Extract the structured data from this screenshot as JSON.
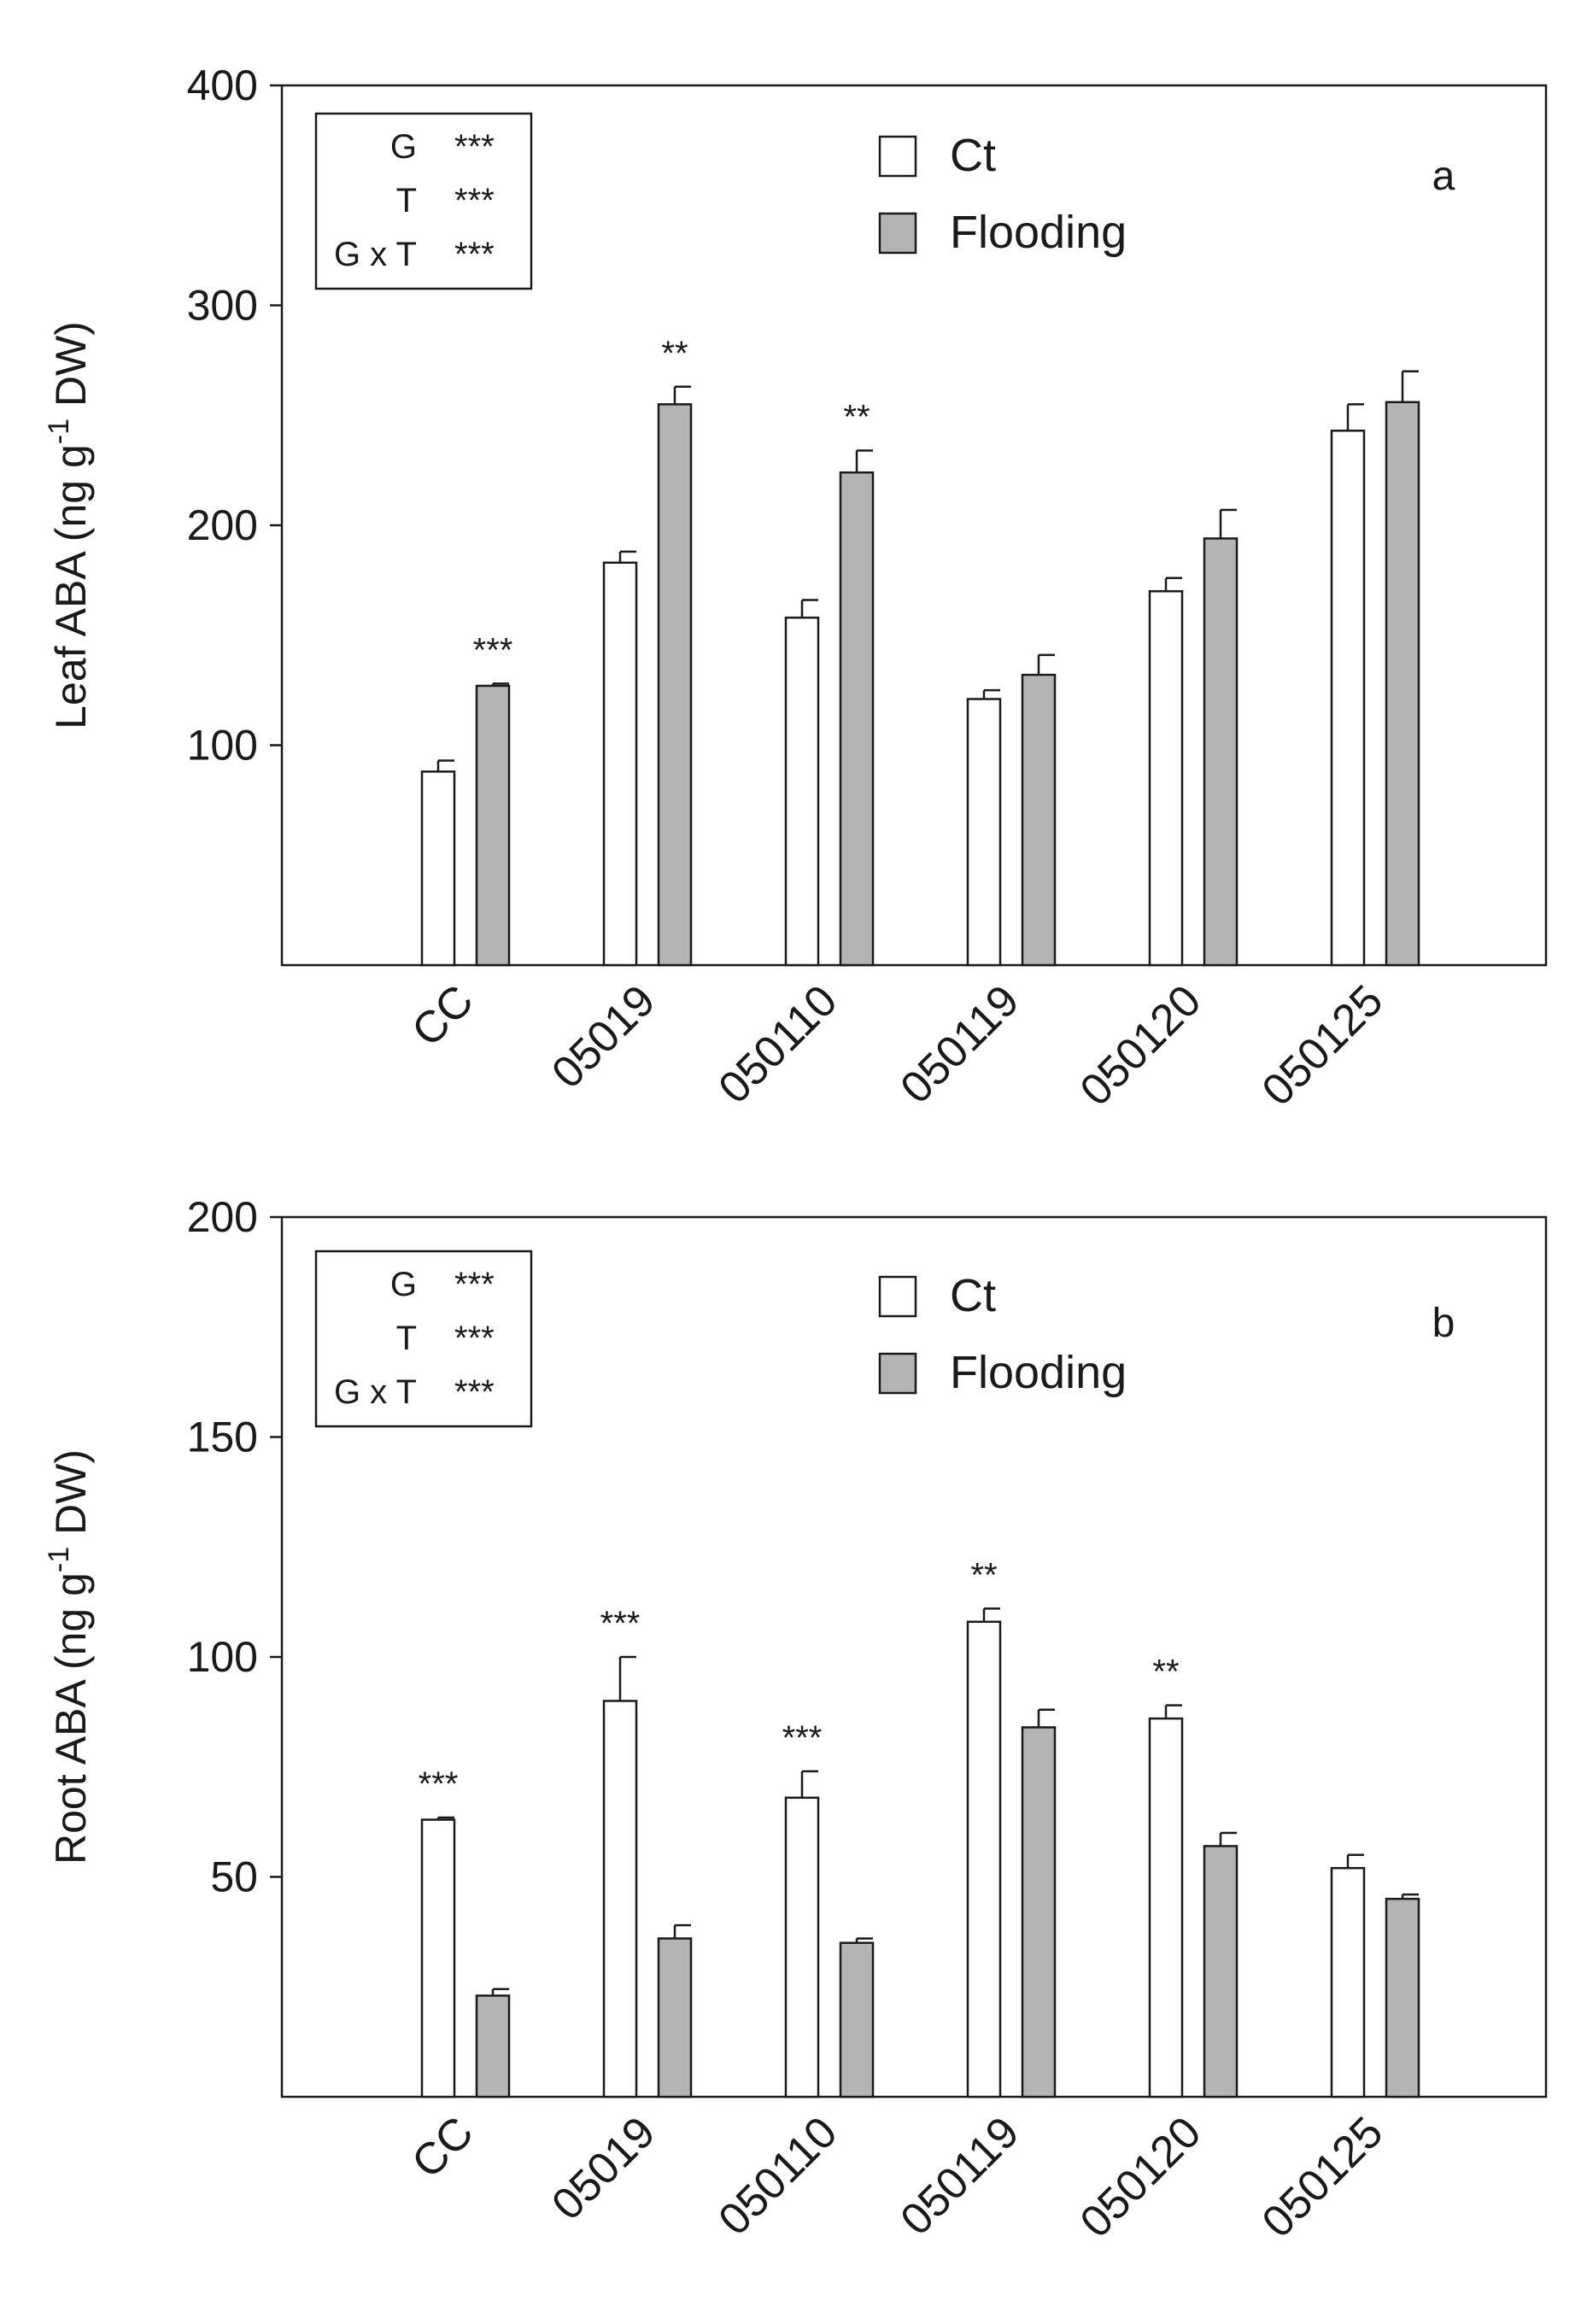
{
  "colors": {
    "ct_fill": "#ffffff",
    "flooding_fill": "#b4b4b4",
    "stroke": "#1a1a1a"
  },
  "chart_data": [
    {
      "type": "bar",
      "panel": "a",
      "ylabel": "Leaf ABA (ng g-1 DW)",
      "ylabel_parts": [
        "Leaf ABA (ng g",
        "-1",
        " DW)"
      ],
      "ylim": [
        0,
        400
      ],
      "yticks": [
        100,
        200,
        300,
        400
      ],
      "categories": [
        "CC",
        "05019",
        "050110",
        "050119",
        "050120",
        "050125"
      ],
      "series": [
        {
          "name": "Ct",
          "values": [
            88,
            183,
            158,
            121,
            170,
            243
          ],
          "errors": [
            5,
            5,
            8,
            4,
            6,
            12
          ]
        },
        {
          "name": "Flooding",
          "values": [
            127,
            255,
            224,
            132,
            194,
            256
          ],
          "errors": [
            1,
            8,
            10,
            9,
            13,
            14
          ]
        }
      ],
      "significance": [
        {
          "category": "CC",
          "series": "Flooding",
          "label": "***"
        },
        {
          "category": "05019",
          "series": "Flooding",
          "label": "**"
        },
        {
          "category": "050110",
          "series": "Flooding",
          "label": "**"
        }
      ],
      "legend": [
        "Ct",
        "Flooding"
      ],
      "stats": [
        {
          "term": "G",
          "sig": "***"
        },
        {
          "term": "T",
          "sig": "***"
        },
        {
          "term": "G x T",
          "sig": "***"
        }
      ]
    },
    {
      "type": "bar",
      "panel": "b",
      "ylabel": "Root ABA (ng g-1 DW)",
      "ylabel_parts": [
        "Root ABA (ng g",
        "-1",
        " DW)"
      ],
      "ylim": [
        0,
        200
      ],
      "yticks": [
        50,
        100,
        150,
        200
      ],
      "categories": [
        "CC",
        "05019",
        "050110",
        "050119",
        "050120",
        "050125"
      ],
      "series": [
        {
          "name": "Ct",
          "values": [
            63,
            90,
            68,
            108,
            86,
            52
          ],
          "errors": [
            0.5,
            10,
            6,
            3,
            3,
            3
          ]
        },
        {
          "name": "Flooding",
          "values": [
            23,
            36,
            35,
            84,
            57,
            45
          ],
          "errors": [
            1.5,
            3,
            1,
            4,
            3,
            1
          ]
        }
      ],
      "significance": [
        {
          "category": "CC",
          "series": "Ct",
          "label": "***"
        },
        {
          "category": "05019",
          "series": "Ct",
          "label": "***"
        },
        {
          "category": "050110",
          "series": "Ct",
          "label": "***"
        },
        {
          "category": "050119",
          "series": "Ct",
          "label": "**"
        },
        {
          "category": "050120",
          "series": "Ct",
          "label": "**"
        }
      ],
      "legend": [
        "Ct",
        "Flooding"
      ],
      "stats": [
        {
          "term": "G",
          "sig": "***"
        },
        {
          "term": "T",
          "sig": "***"
        },
        {
          "term": "G x T",
          "sig": "***"
        }
      ]
    }
  ]
}
